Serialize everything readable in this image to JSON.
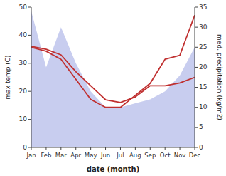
{
  "chart_data": {
    "type": "line",
    "categories": [
      "Jan",
      "Feb",
      "Mar",
      "Apr",
      "May",
      "Jun",
      "Jul",
      "Aug",
      "Sep",
      "Oct",
      "Nov",
      "Dec"
    ],
    "xlabel": "date (month)",
    "ylabel": "max temp (C)",
    "y2label": "med. precipitation (kg/m2)",
    "ylim": [
      0,
      50
    ],
    "yticks": [
      0,
      10,
      20,
      30,
      40,
      50
    ],
    "y2lim": [
      0,
      35
    ],
    "y2ticks": [
      0,
      5,
      10,
      15,
      20,
      25,
      30,
      35
    ],
    "grid": false,
    "series": [
      {
        "type": "area",
        "axis": "y2",
        "color": "#b0b8e8",
        "values": [
          34,
          20,
          30,
          21,
          14,
          10,
          10,
          11,
          12,
          14,
          18,
          25
        ]
      },
      {
        "type": "line",
        "axis": "y2",
        "color": "#c03030",
        "values": [
          25,
          24,
          22,
          17,
          12,
          10,
          10,
          13,
          16,
          22,
          23,
          33
        ]
      },
      {
        "type": "line",
        "color": "#c03030",
        "values": [
          36,
          35,
          33,
          27,
          22,
          17,
          16,
          18,
          22,
          22,
          23,
          25
        ]
      }
    ]
  }
}
